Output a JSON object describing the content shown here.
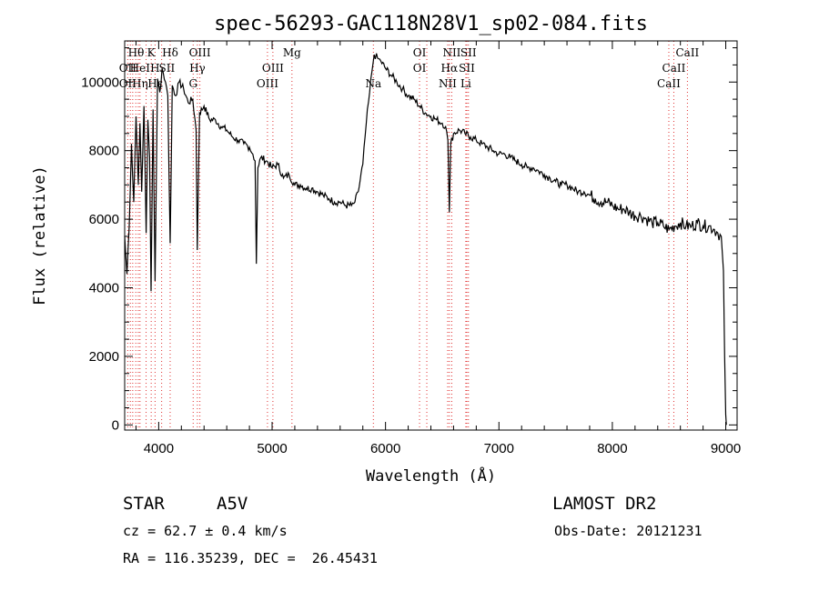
{
  "chart_data": {
    "type": "line",
    "title": "spec-56293-GAC118N28V1_sp02-084.fits",
    "xlabel": "Wavelength (Å)",
    "ylabel": "Flux (relative)",
    "xlim": [
      3700,
      9100
    ],
    "ylim": [
      -150,
      11200
    ],
    "x_ticks": [
      4000,
      5000,
      6000,
      7000,
      8000,
      9000
    ],
    "y_ticks": [
      0,
      2000,
      4000,
      6000,
      8000,
      10000
    ],
    "grid": false,
    "series": [
      {
        "x": [
          3700,
          3720,
          3740,
          3760,
          3780,
          3800,
          3820,
          3835,
          3850,
          3870,
          3889,
          3905,
          3920,
          3933,
          3950,
          3968,
          3990,
          4010,
          4030,
          4060,
          4080,
          4101,
          4120,
          4150,
          4180,
          4220,
          4260,
          4300,
          4330,
          4340,
          4360,
          4400,
          4450,
          4500,
          4550,
          4600,
          4650,
          4700,
          4750,
          4800,
          4830,
          4850,
          4861,
          4875,
          4900,
          4950,
          5000,
          5050,
          5100,
          5150,
          5200,
          5250,
          5300,
          5350,
          5400,
          5450,
          5500,
          5550,
          5600,
          5650,
          5700,
          5730,
          5760,
          5800,
          5830,
          5860,
          5880,
          5900,
          5930,
          5960,
          6000,
          6050,
          6100,
          6150,
          6200,
          6250,
          6300,
          6350,
          6400,
          6450,
          6500,
          6530,
          6550,
          6563,
          6575,
          6600,
          6650,
          6700,
          6750,
          6800,
          6850,
          6900,
          6950,
          7000,
          7050,
          7100,
          7150,
          7200,
          7250,
          7300,
          7350,
          7400,
          7450,
          7500,
          7550,
          7600,
          7650,
          7700,
          7750,
          7800,
          7850,
          7900,
          7950,
          8000,
          8050,
          8100,
          8150,
          8200,
          8250,
          8300,
          8350,
          8400,
          8450,
          8500,
          8550,
          8600,
          8650,
          8700,
          8750,
          8800,
          8850,
          8900,
          8930,
          8960,
          8980,
          8990,
          9000,
          9005
        ],
        "y": [
          5500,
          4400,
          5800,
          8200,
          6500,
          9000,
          7000,
          8800,
          6800,
          9300,
          5600,
          8900,
          7800,
          3900,
          9200,
          4200,
          10100,
          9700,
          10400,
          10000,
          9600,
          5300,
          9900,
          9600,
          10000,
          9800,
          9400,
          9500,
          8600,
          5100,
          9100,
          9300,
          8900,
          8900,
          8700,
          8600,
          8400,
          8300,
          8200,
          8100,
          7900,
          7700,
          4700,
          7500,
          7800,
          7700,
          7500,
          7600,
          7200,
          7300,
          7000,
          7000,
          6900,
          6900,
          6800,
          6700,
          6600,
          6500,
          6500,
          6400,
          6400,
          6500,
          6800,
          7600,
          8800,
          9700,
          10300,
          10800,
          10700,
          10600,
          10400,
          10200,
          10000,
          9800,
          9600,
          9500,
          9300,
          9100,
          9000,
          8900,
          8800,
          8700,
          8300,
          6200,
          8200,
          8500,
          8600,
          8500,
          8400,
          8300,
          8200,
          8100,
          8000,
          7900,
          7900,
          7800,
          7700,
          7600,
          7500,
          7500,
          7400,
          7300,
          7200,
          7100,
          7000,
          7000,
          6900,
          6800,
          6800,
          6700,
          6600,
          6500,
          6500,
          6400,
          6300,
          6300,
          6200,
          6100,
          6100,
          6000,
          5900,
          5900,
          5800,
          5700,
          5800,
          5900,
          5800,
          5800,
          5900,
          5800,
          5800,
          5700,
          5600,
          5500,
          4500,
          2000,
          300,
          0
        ]
      }
    ],
    "reference_lines": [
      {
        "x": 3727
      },
      {
        "x": 3750
      },
      {
        "x": 3771
      },
      {
        "x": 3798
      },
      {
        "x": 3820
      },
      {
        "x": 3835
      },
      {
        "x": 3889
      },
      {
        "x": 3934
      },
      {
        "x": 3968
      },
      {
        "x": 4026
      },
      {
        "x": 4101
      },
      {
        "x": 4304
      },
      {
        "x": 4341
      },
      {
        "x": 4363
      },
      {
        "x": 4959
      },
      {
        "x": 5007
      },
      {
        "x": 5175
      },
      {
        "x": 5893
      },
      {
        "x": 6300
      },
      {
        "x": 6364
      },
      {
        "x": 6548
      },
      {
        "x": 6563
      },
      {
        "x": 6584
      },
      {
        "x": 6708
      },
      {
        "x": 6717
      },
      {
        "x": 6731
      },
      {
        "x": 8498
      },
      {
        "x": 8542
      },
      {
        "x": 8662
      }
    ],
    "line_labels": [
      {
        "text": "Hθ",
        "x": 3800,
        "row": 1
      },
      {
        "text": "K",
        "x": 3934,
        "row": 1
      },
      {
        "text": "Hδ",
        "x": 4101,
        "row": 1
      },
      {
        "text": "OIII",
        "x": 4363,
        "row": 1
      },
      {
        "text": "Mg",
        "x": 5175,
        "row": 1
      },
      {
        "text": "OI",
        "x": 6300,
        "row": 1
      },
      {
        "text": "NII",
        "x": 6584,
        "row": 1
      },
      {
        "text": "SII",
        "x": 6731,
        "row": 1
      },
      {
        "text": "CaII",
        "x": 8662,
        "row": 1
      },
      {
        "text": "OII",
        "x": 3727,
        "row": 2
      },
      {
        "text": "HeI",
        "x": 3835,
        "row": 2
      },
      {
        "text": "H",
        "x": 3968,
        "row": 2
      },
      {
        "text": "SII",
        "x": 4072,
        "row": 2
      },
      {
        "text": "Hγ",
        "x": 4341,
        "row": 2
      },
      {
        "text": "OIII",
        "x": 5007,
        "row": 2
      },
      {
        "text": "OI",
        "x": 6300,
        "row": 2
      },
      {
        "text": "Hα",
        "x": 6563,
        "row": 2
      },
      {
        "text": "SII",
        "x": 6717,
        "row": 2
      },
      {
        "text": "CaII",
        "x": 8542,
        "row": 2
      },
      {
        "text": "OII",
        "x": 3727,
        "row": 3
      },
      {
        "text": "Hη",
        "x": 3835,
        "row": 3
      },
      {
        "text": "Hε",
        "x": 3970,
        "row": 3
      },
      {
        "text": "G",
        "x": 4304,
        "row": 3
      },
      {
        "text": "OIII",
        "x": 4959,
        "row": 3
      },
      {
        "text": "Na",
        "x": 5893,
        "row": 3
      },
      {
        "text": "NII",
        "x": 6548,
        "row": 3
      },
      {
        "text": "Li",
        "x": 6708,
        "row": 3
      },
      {
        "text": "CaII",
        "x": 8498,
        "row": 3
      }
    ],
    "colors": {
      "spectrum": "#000000",
      "reference_lines": "#e03030"
    }
  },
  "info": {
    "object_class": "STAR",
    "subclass": "A5V",
    "redshift": "cz = 62.7 ± 0.4 km/s",
    "coords": "RA = 116.35239, DEC =  26.45431",
    "survey": "LAMOST DR2",
    "obs_date": "Obs-Date: 20121231"
  }
}
